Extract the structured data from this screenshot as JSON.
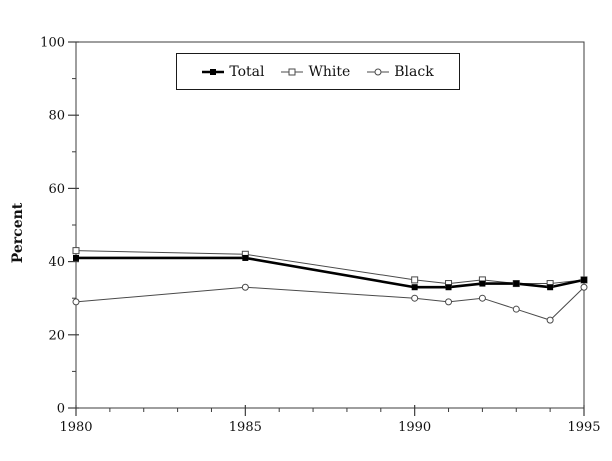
{
  "figure": {
    "background": "#ffffff",
    "frame_color": "#3c3c3c",
    "text_color": "#111111",
    "thin_line_color": "#4a4a4a",
    "thick_line_color": "#000000"
  },
  "chart_data": {
    "type": "line",
    "title": "",
    "xlabel": "",
    "ylabel": "Percent",
    "xlim": [
      1980,
      1995
    ],
    "ylim": [
      0,
      100
    ],
    "x_major_ticks": [
      1980,
      1985,
      1990,
      1995
    ],
    "x_minor_tick_interval": 1,
    "y_major_ticks": [
      0,
      20,
      40,
      60,
      80,
      100
    ],
    "y_minor_tick_interval": 10,
    "grid": false,
    "legend_position": "top-center-inside",
    "x": [
      1980,
      1985,
      1990,
      1991,
      1992,
      1993,
      1994,
      1995
    ],
    "series": [
      {
        "name": "Total",
        "marker": "filled-square",
        "color": "#000000",
        "line_width": 2.6,
        "values": [
          41,
          41,
          33,
          33,
          34,
          34,
          33,
          35
        ]
      },
      {
        "name": "White",
        "marker": "open-square",
        "color": "#4a4a4a",
        "line_width": 1,
        "values": [
          43,
          42,
          35,
          34,
          35,
          34,
          34,
          35
        ]
      },
      {
        "name": "Black",
        "marker": "open-circle",
        "color": "#4a4a4a",
        "line_width": 1,
        "values": [
          29,
          33,
          30,
          29,
          30,
          27,
          24,
          33
        ]
      }
    ]
  }
}
